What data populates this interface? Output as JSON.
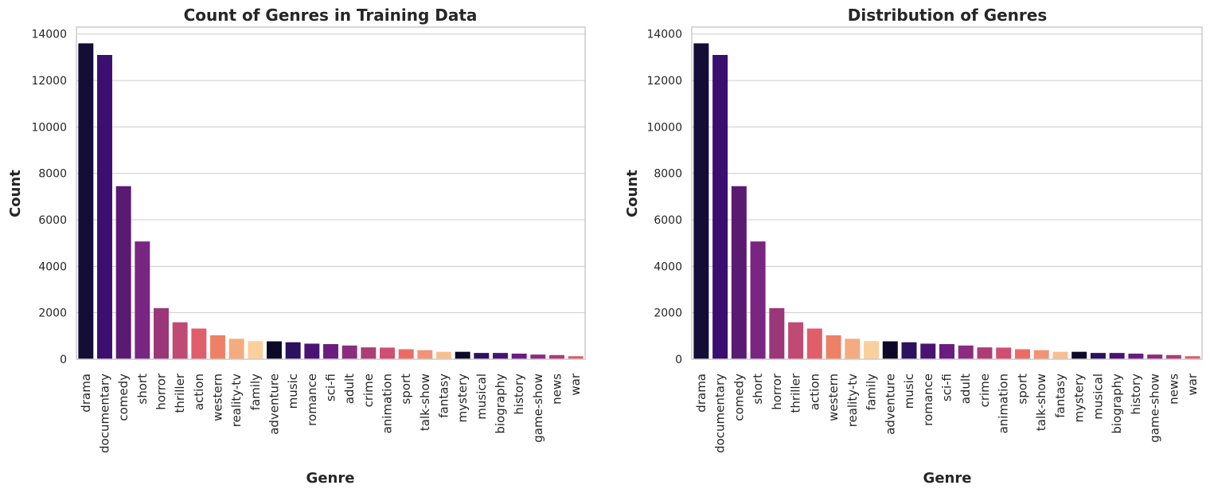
{
  "chart_data": [
    {
      "type": "bar",
      "title": "Count of Genres in Training Data",
      "xlabel": "Genre",
      "ylabel": "Count",
      "ylim": [
        0,
        14300
      ],
      "yticks": [
        0,
        2000,
        4000,
        6000,
        8000,
        10000,
        12000,
        14000
      ],
      "grid": true,
      "categories": [
        "drama",
        "documentary",
        "comedy",
        "short",
        "horror",
        "thriller",
        "action",
        "western",
        "reality-tv",
        "family",
        "adventure",
        "music",
        "romance",
        "sci-fi",
        "adult",
        "crime",
        "animation",
        "sport",
        "talk-show",
        "fantasy",
        "mystery",
        "musical",
        "biography",
        "history",
        "game-show",
        "news",
        "war"
      ],
      "values": [
        13600,
        13100,
        7450,
        5070,
        2200,
        1590,
        1320,
        1030,
        880,
        780,
        770,
        730,
        670,
        650,
        590,
        510,
        500,
        430,
        390,
        320,
        320,
        270,
        270,
        240,
        200,
        180,
        130
      ],
      "colors": [
        "#140e36",
        "#3b0f70",
        "#5a1a72",
        "#792582",
        "#9b3678",
        "#bf4a73",
        "#e05d6a",
        "#ee8165",
        "#f4ab7f",
        "#f9d09b",
        "#0d0a29",
        "#2c115f",
        "#4a1272",
        "#6a1c80",
        "#8b2c80",
        "#ae3d77",
        "#cf4e71",
        "#ec6c63",
        "#f29378",
        "#f7bf90",
        "#0d0a29",
        "#2c115f",
        "#4a1272",
        "#6a1c80",
        "#8b2c80",
        "#ae3d77",
        "#e05d6a"
      ]
    },
    {
      "type": "bar",
      "title": "Distribution of Genres",
      "xlabel": "Genre",
      "ylabel": "Count",
      "ylim": [
        0,
        14300
      ],
      "yticks": [
        0,
        2000,
        4000,
        6000,
        8000,
        10000,
        12000,
        14000
      ],
      "grid": true,
      "categories": [
        "drama",
        "documentary",
        "comedy",
        "short",
        "horror",
        "thriller",
        "action",
        "western",
        "reality-tv",
        "family",
        "adventure",
        "music",
        "romance",
        "sci-fi",
        "adult",
        "crime",
        "animation",
        "sport",
        "talk-show",
        "fantasy",
        "mystery",
        "musical",
        "biography",
        "history",
        "game-show",
        "news",
        "war"
      ],
      "values": [
        13600,
        13100,
        7450,
        5070,
        2200,
        1590,
        1320,
        1030,
        880,
        780,
        770,
        730,
        670,
        650,
        590,
        510,
        500,
        430,
        390,
        320,
        320,
        270,
        270,
        240,
        200,
        180,
        130
      ],
      "colors": [
        "#140e36",
        "#3b0f70",
        "#5a1a72",
        "#792582",
        "#9b3678",
        "#bf4a73",
        "#e05d6a",
        "#ee8165",
        "#f4ab7f",
        "#f9d09b",
        "#0d0a29",
        "#2c115f",
        "#4a1272",
        "#6a1c80",
        "#8b2c80",
        "#ae3d77",
        "#cf4e71",
        "#ec6c63",
        "#f29378",
        "#f7bf90",
        "#0d0a29",
        "#2c115f",
        "#4a1272",
        "#6a1c80",
        "#8b2c80",
        "#ae3d77",
        "#e05d6a"
      ]
    }
  ]
}
